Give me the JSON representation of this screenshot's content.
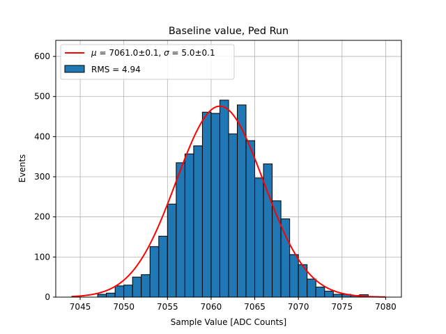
{
  "chart_data": {
    "type": "bar",
    "title": "Baseline value, Ped Run",
    "xlabel": "Sample Value [ADC Counts]",
    "ylabel": "Events",
    "xlim": [
      7042.2,
      7081.8
    ],
    "ylim": [
      0,
      640
    ],
    "grid": true,
    "legend_position": "top-left",
    "x_ticks": [
      7045,
      7050,
      7055,
      7060,
      7065,
      7070,
      7075,
      7080
    ],
    "y_ticks": [
      0,
      100,
      200,
      300,
      400,
      500,
      600
    ],
    "bins": {
      "edges_start": 7044,
      "bin_width": 1,
      "counts": [
        0,
        0,
        0,
        7,
        10,
        28,
        30,
        50,
        56,
        126,
        152,
        232,
        335,
        357,
        377,
        461,
        458,
        491,
        407,
        479,
        390,
        297,
        332,
        240,
        195,
        106,
        81,
        45,
        25,
        15,
        7,
        7,
        4,
        6,
        1,
        0
      ],
      "color": "#1f77b4",
      "edgecolor": "#000000"
    },
    "fit": {
      "type": "gaussian",
      "mu": 7061.0,
      "sigma": 5.0,
      "amplitude": 476,
      "x_range": [
        7044,
        7080
      ],
      "color": "#ff0000"
    },
    "legend": {
      "fit_label_mu_value": "7061.0±0.1",
      "fit_label_sigma_value": "5.0±0.1",
      "hist_label": "RMS = 4.94"
    }
  }
}
